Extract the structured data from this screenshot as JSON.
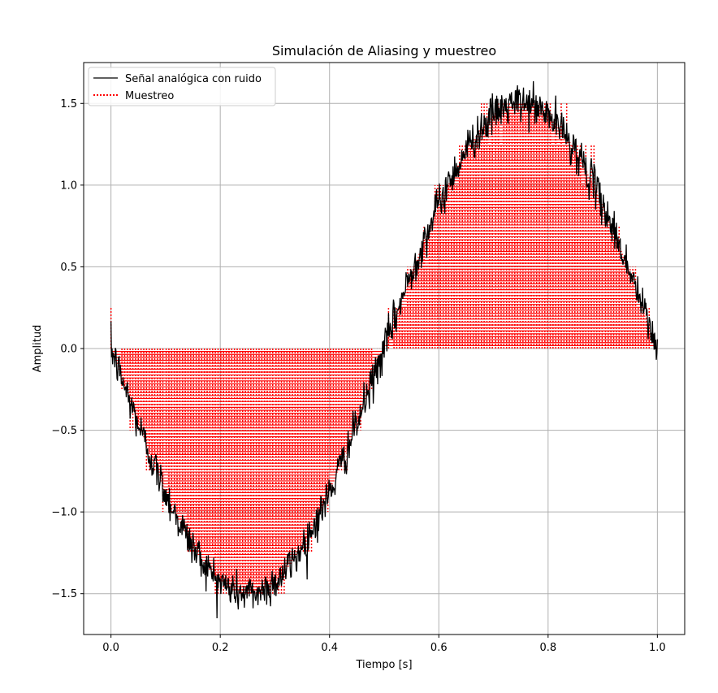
{
  "chart_data": {
    "type": "line",
    "title": "Simulación de Aliasing y muestreo",
    "xlabel": "Tiempo [s]",
    "ylabel": "Amplitud",
    "xlim": [
      -0.05,
      1.05
    ],
    "ylim": [
      -1.75,
      1.75
    ],
    "x_ticks": [
      0.0,
      0.2,
      0.4,
      0.6,
      0.8,
      1.0
    ],
    "x_tick_labels": [
      "0.0",
      "0.2",
      "0.4",
      "0.6",
      "0.8",
      "1.0"
    ],
    "y_ticks": [
      -1.5,
      -1.0,
      -0.5,
      0.0,
      0.5,
      1.0,
      1.5
    ],
    "y_tick_labels": [
      "−1.5",
      "−1.0",
      "−0.5",
      "0.0",
      "0.5",
      "1.0",
      "1.5"
    ],
    "grid": true,
    "legend_position": "top-left",
    "series": [
      {
        "name": "Señal analógica con ruido",
        "style": "solid",
        "color": "#000000",
        "function": "-1.5*sin(2*pi*1*t) + noise",
        "amplitude": 1.5,
        "frequency_hz": 1,
        "x_range": [
          0,
          1
        ],
        "noise_std": 0.06,
        "key_points": [
          {
            "x": 0.0,
            "y": 0.0
          },
          {
            "x": 0.25,
            "y": -1.5
          },
          {
            "x": 0.5,
            "y": 0.0
          },
          {
            "x": 0.75,
            "y": 1.5
          },
          {
            "x": 1.0,
            "y": 0.0
          }
        ]
      },
      {
        "name": "Muestreo",
        "style": "dotted-stem",
        "color": "#ff0000",
        "quantization_step": 0.25,
        "sample_points": 200,
        "description_of_marks": "vertical dotted stems from 0 to the quantized signal value with horizontal solid red lines at each level"
      }
    ]
  },
  "colors": {
    "signal": "#000000",
    "samples": "#ff0000",
    "grid": "#b0b0b0",
    "axes": "#000000"
  }
}
